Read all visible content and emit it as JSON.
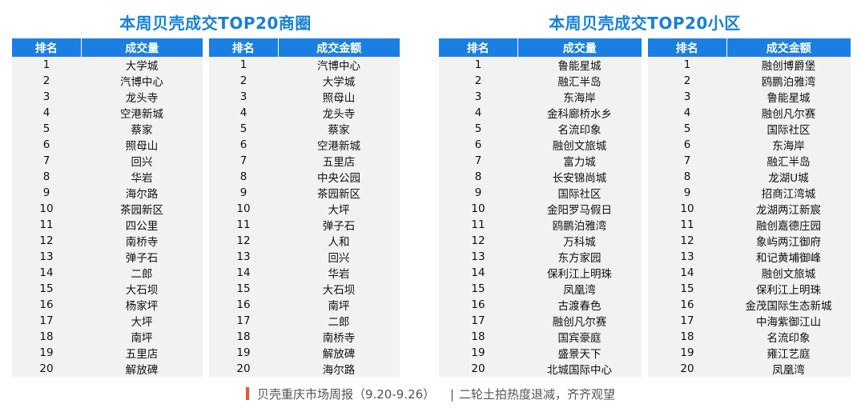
{
  "left": {
    "title": "本周贝壳成交TOP20商圈",
    "volume": {
      "headers": [
        "排名",
        "成交量"
      ],
      "rows": [
        [
          "1",
          "大学城"
        ],
        [
          "2",
          "汽博中心"
        ],
        [
          "3",
          "龙头寺"
        ],
        [
          "4",
          "空港新城"
        ],
        [
          "5",
          "蔡家"
        ],
        [
          "6",
          "照母山"
        ],
        [
          "7",
          "回兴"
        ],
        [
          "8",
          "华岩"
        ],
        [
          "9",
          "海尔路"
        ],
        [
          "10",
          "茶园新区"
        ],
        [
          "11",
          "四公里"
        ],
        [
          "12",
          "南桥寺"
        ],
        [
          "13",
          "弹子石"
        ],
        [
          "14",
          "二郎"
        ],
        [
          "15",
          "大石坝"
        ],
        [
          "16",
          "杨家坪"
        ],
        [
          "17",
          "大坪"
        ],
        [
          "18",
          "南坪"
        ],
        [
          "19",
          "五里店"
        ],
        [
          "20",
          "解放碑"
        ]
      ]
    },
    "amount": {
      "headers": [
        "排名",
        "成交金额"
      ],
      "rows": [
        [
          "1",
          "汽博中心"
        ],
        [
          "2",
          "大学城"
        ],
        [
          "3",
          "照母山"
        ],
        [
          "4",
          "龙头寺"
        ],
        [
          "5",
          "蔡家"
        ],
        [
          "6",
          "空港新城"
        ],
        [
          "7",
          "五里店"
        ],
        [
          "8",
          "中央公园"
        ],
        [
          "9",
          "茶园新区"
        ],
        [
          "10",
          "大坪"
        ],
        [
          "11",
          "弹子石"
        ],
        [
          "12",
          "人和"
        ],
        [
          "13",
          "回兴"
        ],
        [
          "14",
          "华岩"
        ],
        [
          "15",
          "大石坝"
        ],
        [
          "16",
          "南坪"
        ],
        [
          "17",
          "二郎"
        ],
        [
          "18",
          "南桥寺"
        ],
        [
          "19",
          "解放碑"
        ],
        [
          "20",
          "海尔路"
        ]
      ]
    }
  },
  "right": {
    "title": "本周贝壳成交TOP20小区",
    "volume": {
      "headers": [
        "排名",
        "成交量"
      ],
      "rows": [
        [
          "1",
          "鲁能星城"
        ],
        [
          "2",
          "融汇半岛"
        ],
        [
          "3",
          "东海岸"
        ],
        [
          "4",
          "金科廊桥水乡"
        ],
        [
          "5",
          "名流印象"
        ],
        [
          "6",
          "融创文旅城"
        ],
        [
          "7",
          "富力城"
        ],
        [
          "8",
          "长安锦尚城"
        ],
        [
          "9",
          "国际社区"
        ],
        [
          "10",
          "金阳罗马假日"
        ],
        [
          "11",
          "鸥鹏泊雅湾"
        ],
        [
          "12",
          "万科城"
        ],
        [
          "13",
          "东方家园"
        ],
        [
          "14",
          "保利江上明珠"
        ],
        [
          "15",
          "凤凰湾"
        ],
        [
          "16",
          "古渡春色"
        ],
        [
          "17",
          "融创凡尔赛"
        ],
        [
          "18",
          "国宾豪庭"
        ],
        [
          "19",
          "盛景天下"
        ],
        [
          "20",
          "北城国际中心"
        ]
      ]
    },
    "amount": {
      "headers": [
        "排名",
        "成交金额"
      ],
      "rows": [
        [
          "1",
          "融创博爵堡"
        ],
        [
          "2",
          "鸥鹏泊雅湾"
        ],
        [
          "3",
          "鲁能星城"
        ],
        [
          "4",
          "融创凡尔赛"
        ],
        [
          "5",
          "国际社区"
        ],
        [
          "6",
          "东海岸"
        ],
        [
          "7",
          "融汇半岛"
        ],
        [
          "8",
          "龙湖U城"
        ],
        [
          "9",
          "招商江湾城"
        ],
        [
          "10",
          "龙湖两江新宸"
        ],
        [
          "11",
          "融创嘉德庄园"
        ],
        [
          "12",
          "象屿两江御府"
        ],
        [
          "13",
          "和记黄埔御峰"
        ],
        [
          "14",
          "融创文旅城"
        ],
        [
          "15",
          "保利江上明珠"
        ],
        [
          "16",
          "金茂国际生态新城"
        ],
        [
          "17",
          "中海紫御江山"
        ],
        [
          "18",
          "名流印象"
        ],
        [
          "19",
          "雍江艺庭"
        ],
        [
          "20",
          "凤凰湾"
        ]
      ]
    }
  },
  "footer": {
    "source": "贝壳重庆市场周报（9.20-9.26）",
    "separator": "|",
    "headline": "二轮土拍热度退减，齐齐观望"
  }
}
